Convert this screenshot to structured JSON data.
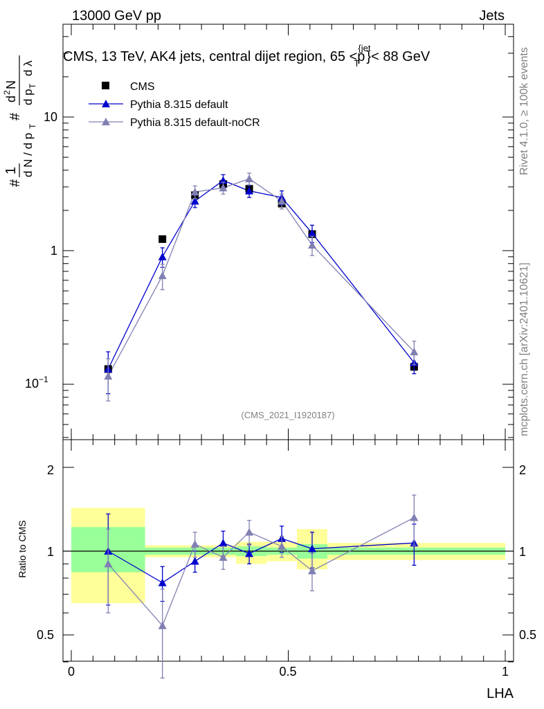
{
  "header": {
    "left": "13000 GeV pp",
    "right": "Jets"
  },
  "side_labels": {
    "top": "Rivet 4.1.0, ≥ 100k events",
    "bottom": "mcplots.cern.ch [arXiv:2401.10621]"
  },
  "chart_data": [
    {
      "type": "scatter",
      "title_main": "CMS, 13 TeV, AK4 jets, central dijet region, 65 <p",
      "title_sup": "{jet",
      "title_sub": "T",
      "title_end": "}< 88 GeV",
      "ylabel": "# 1/dN/dp_T # d²N/dp_T dλ",
      "yscale": "log",
      "ylim": [
        0.04,
        50
      ],
      "xlim": [
        -0.01,
        1.01
      ],
      "yticks": [
        "10⁻¹",
        "1",
        "10"
      ],
      "watermark": "(CMS_2021_I1920187)",
      "legend_position": "top-left",
      "legend": [
        "CMS",
        "Pythia 8.315 default",
        "Pythia 8.315 default-noCR"
      ],
      "series": [
        {
          "name": "CMS",
          "color": "#000000",
          "marker": "square",
          "x": [
            0.085,
            0.21,
            0.285,
            0.35,
            0.41,
            0.485,
            0.555,
            0.79
          ],
          "y": [
            0.13,
            1.22,
            2.6,
            3.15,
            2.9,
            2.25,
            1.33,
            0.135
          ]
        },
        {
          "name": "Pythia 8.315 default",
          "color": "#0000cc",
          "marker": "triangle",
          "x": [
            0.085,
            0.21,
            0.285,
            0.35,
            0.41,
            0.485,
            0.555,
            0.79
          ],
          "y": [
            0.13,
            0.9,
            2.35,
            3.35,
            2.8,
            2.5,
            1.35,
            0.145
          ],
          "err": [
            0.045,
            0.15,
            0.25,
            0.35,
            0.3,
            0.3,
            0.2,
            0.025
          ]
        },
        {
          "name": "Pythia 8.315 default-noCR",
          "color": "#8080b3",
          "marker": "triangle",
          "x": [
            0.085,
            0.21,
            0.285,
            0.35,
            0.41,
            0.485,
            0.555,
            0.79
          ],
          "y": [
            0.115,
            0.65,
            2.75,
            2.95,
            3.45,
            2.35,
            1.1,
            0.175
          ],
          "err": [
            0.04,
            0.14,
            0.3,
            0.3,
            0.35,
            0.3,
            0.18,
            0.035
          ]
        }
      ]
    },
    {
      "type": "scatter",
      "ylabel": "Ratio to CMS",
      "xlabel": "LHA",
      "ylim": [
        0.4,
        2.3
      ],
      "xlim": [
        -0.01,
        1.01
      ],
      "yticks": [
        "0.5",
        "1",
        "2"
      ],
      "xticks": [
        "0",
        "0.5",
        "1"
      ],
      "bands": [
        {
          "x0": 0.0,
          "x1": 0.17,
          "y_lo": 0.65,
          "y_hi": 1.43,
          "stat_lo": 0.84,
          "stat_hi": 1.22
        },
        {
          "x0": 0.17,
          "x1": 0.38,
          "y_lo": 0.95,
          "y_hi": 1.05,
          "stat_lo": 0.97,
          "stat_hi": 1.03
        },
        {
          "x0": 0.38,
          "x1": 0.45,
          "y_lo": 0.9,
          "y_hi": 1.08,
          "stat_lo": 0.96,
          "stat_hi": 1.04
        },
        {
          "x0": 0.45,
          "x1": 0.52,
          "y_lo": 0.92,
          "y_hi": 1.08,
          "stat_lo": 0.97,
          "stat_hi": 1.03
        },
        {
          "x0": 0.52,
          "x1": 0.59,
          "y_lo": 0.86,
          "y_hi": 1.2,
          "stat_lo": 0.94,
          "stat_hi": 1.06
        },
        {
          "x0": 0.59,
          "x1": 1.0,
          "y_lo": 0.93,
          "y_hi": 1.07,
          "stat_lo": 0.97,
          "stat_hi": 1.03
        }
      ],
      "series": [
        {
          "name": "Pythia 8.315 default",
          "color": "#0000cc",
          "x": [
            0.085,
            0.21,
            0.285,
            0.35,
            0.41,
            0.485,
            0.555,
            0.79
          ],
          "y": [
            1.0,
            0.77,
            0.92,
            1.07,
            0.98,
            1.11,
            1.02,
            1.07
          ],
          "err": [
            0.36,
            0.11,
            0.08,
            0.11,
            0.08,
            0.12,
            0.15,
            0.18
          ]
        },
        {
          "name": "Pythia 8.315 default-noCR",
          "color": "#8080b3",
          "x": [
            0.085,
            0.21,
            0.285,
            0.35,
            0.41,
            0.485,
            0.555,
            0.79
          ],
          "y": [
            0.9,
            0.54,
            1.06,
            0.95,
            1.17,
            1.04,
            0.85,
            1.32
          ],
          "err": [
            0.3,
            0.19,
            0.11,
            0.09,
            0.12,
            0.09,
            0.13,
            0.27
          ]
        }
      ]
    }
  ]
}
